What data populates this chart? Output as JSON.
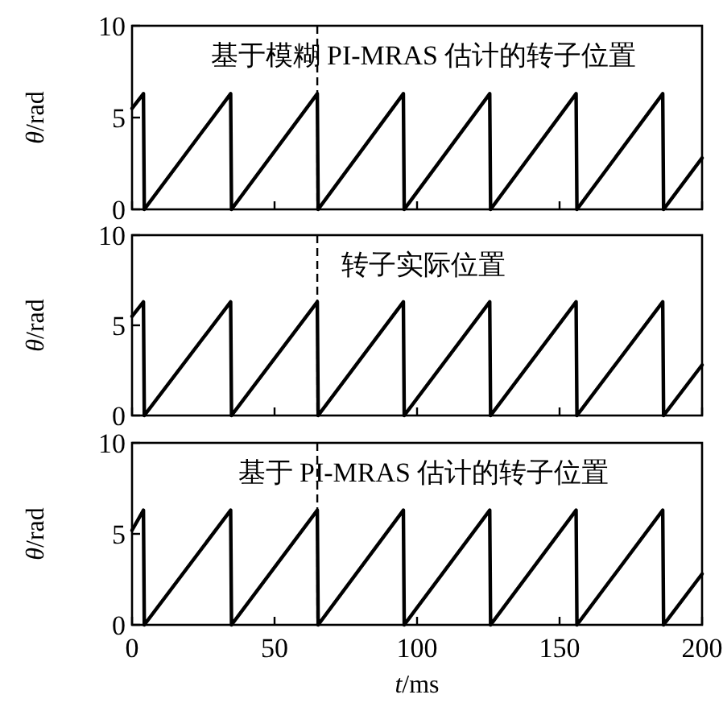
{
  "chart_data": [
    {
      "type": "line",
      "title": "基于模糊 PI-MRAS 估计的转子位置",
      "ylabel": "θ/rad",
      "xlim": [
        0,
        200
      ],
      "xticks": [
        0,
        50,
        100,
        150,
        200
      ],
      "ylim": [
        0,
        10
      ],
      "yticks": [
        0,
        5,
        10
      ],
      "tick_labels": "y",
      "ref_lines": [
        {
          "axis": "x",
          "value": 65,
          "line_style": "dashed"
        }
      ],
      "x": [
        0,
        4.0,
        4.3,
        34.6,
        34.9,
        65.0,
        65.3,
        95.2,
        95.5,
        125.5,
        125.8,
        155.8,
        156.1,
        186.2,
        186.5,
        200
      ],
      "series": [
        {
          "color": "#000000",
          "values": [
            5.5,
            6.3,
            0,
            6.3,
            0,
            6.3,
            0,
            6.3,
            0,
            6.3,
            0,
            6.3,
            0,
            6.3,
            0,
            2.8
          ]
        }
      ]
    },
    {
      "type": "line",
      "title": "转子实际位置",
      "ylabel": "θ/rad",
      "xlim": [
        0,
        200
      ],
      "xticks": [
        0,
        50,
        100,
        150,
        200
      ],
      "ylim": [
        0,
        10
      ],
      "yticks": [
        0,
        5,
        10
      ],
      "tick_labels": "y",
      "ref_lines": [
        {
          "axis": "x",
          "value": 65,
          "line_style": "dashed"
        }
      ],
      "x": [
        0,
        4.0,
        4.3,
        34.6,
        34.9,
        65.0,
        65.3,
        95.2,
        95.5,
        125.5,
        125.8,
        155.8,
        156.1,
        186.2,
        186.5,
        200
      ],
      "series": [
        {
          "color": "#000000",
          "values": [
            5.5,
            6.3,
            0,
            6.3,
            0,
            6.3,
            0,
            6.3,
            0,
            6.3,
            0,
            6.3,
            0,
            6.3,
            0,
            2.8
          ]
        }
      ]
    },
    {
      "type": "line",
      "title": "基于 PI-MRAS 估计的转子位置",
      "ylabel": "θ/rad",
      "xlabel": "t/ms",
      "xlim": [
        0,
        200
      ],
      "xticks": [
        0,
        50,
        100,
        150,
        200
      ],
      "ylim": [
        0,
        10
      ],
      "yticks": [
        0,
        5,
        10
      ],
      "ref_lines": [
        {
          "axis": "x",
          "value": 65,
          "line_style": "dashed"
        }
      ],
      "x": [
        0,
        4.0,
        4.3,
        34.6,
        34.9,
        65.0,
        65.3,
        95.2,
        95.5,
        125.5,
        125.8,
        155.8,
        156.1,
        186.2,
        186.5,
        200
      ],
      "series": [
        {
          "color": "#000000",
          "values": [
            5.2,
            6.3,
            0,
            6.3,
            0,
            6.3,
            0,
            6.3,
            0,
            6.3,
            0,
            6.3,
            0,
            6.3,
            0,
            2.8
          ]
        }
      ]
    }
  ]
}
